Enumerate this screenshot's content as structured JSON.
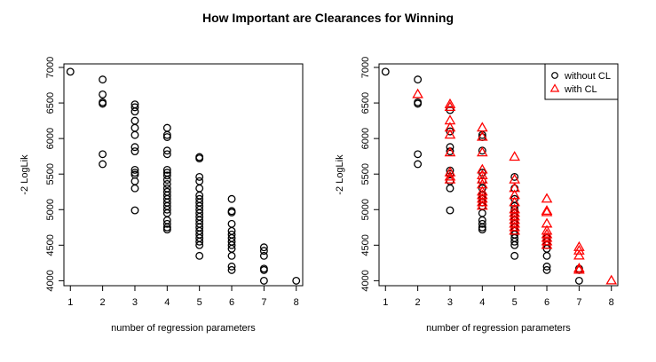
{
  "title": "How Important are Clearances for Winning",
  "chart_data": [
    {
      "type": "scatter",
      "xlabel": "number of regression parameters",
      "ylabel": "-2 LogLik",
      "xlim": [
        0.8,
        8.2
      ],
      "ylim": [
        3930,
        7050
      ],
      "x_ticks": [
        "1",
        "2",
        "3",
        "4",
        "5",
        "6",
        "7",
        "8"
      ],
      "y_ticks": [
        "4000",
        "4500",
        "5000",
        "5500",
        "6000",
        "6500",
        "7000"
      ],
      "grid": false,
      "legend": null,
      "series": [
        {
          "marker": "circle",
          "color": "#000000",
          "points": [
            [
              1,
              6940
            ],
            [
              2,
              6830
            ],
            [
              2,
              6620
            ],
            [
              2,
              6510
            ],
            [
              2,
              6490
            ],
            [
              2,
              5780
            ],
            [
              2,
              5640
            ],
            [
              3,
              6480
            ],
            [
              3,
              6440
            ],
            [
              3,
              6380
            ],
            [
              3,
              6250
            ],
            [
              3,
              6150
            ],
            [
              3,
              6050
            ],
            [
              3,
              5880
            ],
            [
              3,
              5820
            ],
            [
              3,
              5560
            ],
            [
              3,
              5520
            ],
            [
              3,
              5490
            ],
            [
              3,
              5400
            ],
            [
              3,
              5300
            ],
            [
              3,
              4990
            ],
            [
              4,
              6150
            ],
            [
              4,
              6050
            ],
            [
              4,
              6020
            ],
            [
              4,
              5830
            ],
            [
              4,
              5780
            ],
            [
              4,
              5560
            ],
            [
              4,
              5520
            ],
            [
              4,
              5480
            ],
            [
              4,
              5420
            ],
            [
              4,
              5360
            ],
            [
              4,
              5300
            ],
            [
              4,
              5250
            ],
            [
              4,
              5200
            ],
            [
              4,
              5150
            ],
            [
              4,
              5100
            ],
            [
              4,
              5050
            ],
            [
              4,
              5000
            ],
            [
              4,
              4950
            ],
            [
              4,
              4850
            ],
            [
              4,
              4800
            ],
            [
              4,
              4750
            ],
            [
              4,
              4720
            ],
            [
              5,
              5740
            ],
            [
              5,
              5720
            ],
            [
              5,
              5460
            ],
            [
              5,
              5400
            ],
            [
              5,
              5300
            ],
            [
              5,
              5200
            ],
            [
              5,
              5150
            ],
            [
              5,
              5100
            ],
            [
              5,
              5050
            ],
            [
              5,
              5000
            ],
            [
              5,
              4950
            ],
            [
              5,
              4900
            ],
            [
              5,
              4850
            ],
            [
              5,
              4800
            ],
            [
              5,
              4750
            ],
            [
              5,
              4700
            ],
            [
              5,
              4650
            ],
            [
              5,
              4600
            ],
            [
              5,
              4550
            ],
            [
              5,
              4500
            ],
            [
              5,
              4350
            ],
            [
              6,
              5150
            ],
            [
              6,
              4980
            ],
            [
              6,
              4960
            ],
            [
              6,
              4800
            ],
            [
              6,
              4700
            ],
            [
              6,
              4650
            ],
            [
              6,
              4600
            ],
            [
              6,
              4550
            ],
            [
              6,
              4500
            ],
            [
              6,
              4450
            ],
            [
              6,
              4350
            ],
            [
              6,
              4200
            ],
            [
              6,
              4150
            ],
            [
              7,
              4470
            ],
            [
              7,
              4420
            ],
            [
              7,
              4350
            ],
            [
              7,
              4170
            ],
            [
              7,
              4150
            ],
            [
              7,
              4000
            ],
            [
              8,
              4000
            ]
          ]
        }
      ]
    },
    {
      "type": "scatter",
      "xlabel": "number of regression parameters",
      "ylabel": "-2 LogLik",
      "xlim": [
        0.8,
        8.2
      ],
      "ylim": [
        3930,
        7050
      ],
      "x_ticks": [
        "1",
        "2",
        "3",
        "4",
        "5",
        "6",
        "7",
        "8"
      ],
      "y_ticks": [
        "4000",
        "4500",
        "5000",
        "5500",
        "6000",
        "6500",
        "7000"
      ],
      "grid": false,
      "legend": "top-right",
      "series": [
        {
          "name": "without CL",
          "marker": "circle",
          "color": "#000000",
          "points": [
            [
              1,
              6940
            ],
            [
              2,
              6830
            ],
            [
              2,
              6510
            ],
            [
              2,
              6490
            ],
            [
              2,
              5780
            ],
            [
              2,
              5640
            ],
            [
              3,
              6400
            ],
            [
              3,
              6100
            ],
            [
              3,
              5880
            ],
            [
              3,
              5820
            ],
            [
              3,
              5550
            ],
            [
              3,
              5500
            ],
            [
              3,
              5400
            ],
            [
              3,
              5300
            ],
            [
              3,
              4990
            ],
            [
              4,
              6050
            ],
            [
              4,
              6020
            ],
            [
              4,
              5830
            ],
            [
              4,
              5520
            ],
            [
              4,
              5400
            ],
            [
              4,
              5300
            ],
            [
              4,
              5200
            ],
            [
              4,
              5150
            ],
            [
              4,
              5100
            ],
            [
              4,
              5050
            ],
            [
              4,
              4950
            ],
            [
              4,
              4850
            ],
            [
              4,
              4800
            ],
            [
              4,
              4750
            ],
            [
              4,
              4720
            ],
            [
              5,
              5460
            ],
            [
              5,
              5300
            ],
            [
              5,
              5150
            ],
            [
              5,
              5050
            ],
            [
              5,
              5000
            ],
            [
              5,
              4950
            ],
            [
              5,
              4900
            ],
            [
              5,
              4850
            ],
            [
              5,
              4800
            ],
            [
              5,
              4750
            ],
            [
              5,
              4700
            ],
            [
              5,
              4650
            ],
            [
              5,
              4600
            ],
            [
              5,
              4550
            ],
            [
              5,
              4500
            ],
            [
              5,
              4350
            ],
            [
              6,
              4600
            ],
            [
              6,
              4550
            ],
            [
              6,
              4500
            ],
            [
              6,
              4450
            ],
            [
              6,
              4350
            ],
            [
              6,
              4200
            ],
            [
              6,
              4150
            ],
            [
              7,
              4170
            ],
            [
              7,
              4150
            ],
            [
              7,
              4000
            ]
          ]
        },
        {
          "name": "with CL",
          "marker": "triangle",
          "color": "#ff0000",
          "points": [
            [
              2,
              6620
            ],
            [
              3,
              6480
            ],
            [
              3,
              6440
            ],
            [
              3,
              6250
            ],
            [
              3,
              6150
            ],
            [
              3,
              6050
            ],
            [
              3,
              5800
            ],
            [
              3,
              5520
            ],
            [
              3,
              5460
            ],
            [
              3,
              5420
            ],
            [
              4,
              6150
            ],
            [
              4,
              6020
            ],
            [
              4,
              5800
            ],
            [
              4,
              5560
            ],
            [
              4,
              5480
            ],
            [
              4,
              5420
            ],
            [
              4,
              5350
            ],
            [
              4,
              5250
            ],
            [
              4,
              5200
            ],
            [
              4,
              5150
            ],
            [
              4,
              5100
            ],
            [
              4,
              5050
            ],
            [
              5,
              5740
            ],
            [
              5,
              5420
            ],
            [
              5,
              5300
            ],
            [
              5,
              5200
            ],
            [
              5,
              5100
            ],
            [
              5,
              5000
            ],
            [
              5,
              4950
            ],
            [
              5,
              4900
            ],
            [
              5,
              4850
            ],
            [
              5,
              4800
            ],
            [
              5,
              4750
            ],
            [
              5,
              4700
            ],
            [
              6,
              5150
            ],
            [
              6,
              4980
            ],
            [
              6,
              4960
            ],
            [
              6,
              4800
            ],
            [
              6,
              4700
            ],
            [
              6,
              4650
            ],
            [
              6,
              4600
            ],
            [
              6,
              4550
            ],
            [
              6,
              4500
            ],
            [
              7,
              4470
            ],
            [
              7,
              4420
            ],
            [
              7,
              4350
            ],
            [
              7,
              4170
            ],
            [
              7,
              4150
            ],
            [
              8,
              4000
            ]
          ]
        }
      ]
    }
  ]
}
